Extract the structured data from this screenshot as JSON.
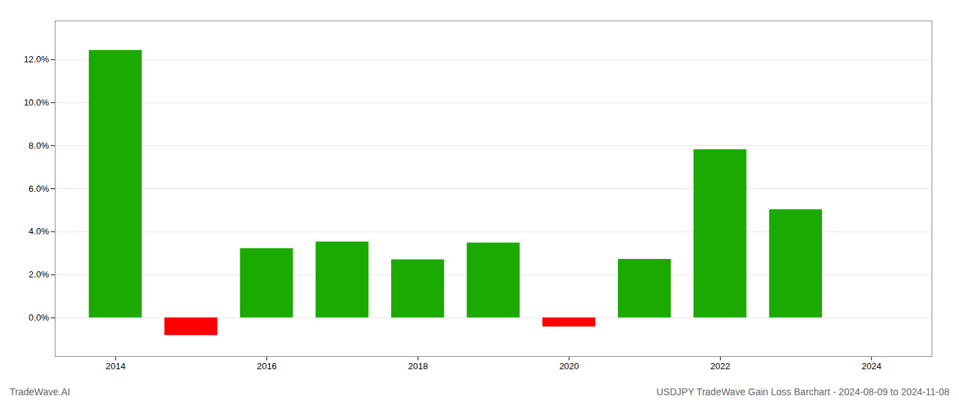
{
  "chart_data": {
    "type": "bar",
    "x": [
      2014,
      2015,
      2016,
      2017,
      2018,
      2019,
      2020,
      2021,
      2022,
      2023
    ],
    "values": [
      0.1243,
      -0.0082,
      0.0322,
      0.0353,
      0.027,
      0.0348,
      -0.0042,
      0.0272,
      0.0782,
      0.0503
    ],
    "colors": [
      "#1aaa00",
      "#ff0000",
      "#1aaa00",
      "#1aaa00",
      "#1aaa00",
      "#1aaa00",
      "#ff0000",
      "#1aaa00",
      "#1aaa00",
      "#1aaa00"
    ],
    "xlim": [
      2013.2,
      2024.8
    ],
    "xticks": [
      2014,
      2016,
      2018,
      2020,
      2022,
      2024
    ],
    "ylim": [
      -0.018,
      0.138
    ],
    "yticks": [
      {
        "value": 0.0,
        "label": "0.0%"
      },
      {
        "value": 0.02,
        "label": "2.0%"
      },
      {
        "value": 0.04,
        "label": "4.0%"
      },
      {
        "value": 0.06,
        "label": "6.0%"
      },
      {
        "value": 0.08,
        "label": "8.0%"
      },
      {
        "value": 0.1,
        "label": "10.0%"
      },
      {
        "value": 0.12,
        "label": "12.0%"
      }
    ],
    "grid": true,
    "annotations": [
      "TradeWave.AI",
      "USDJPY TradeWave Gain Loss Barchart - 2024-08-09 to 2024-11-08"
    ]
  }
}
